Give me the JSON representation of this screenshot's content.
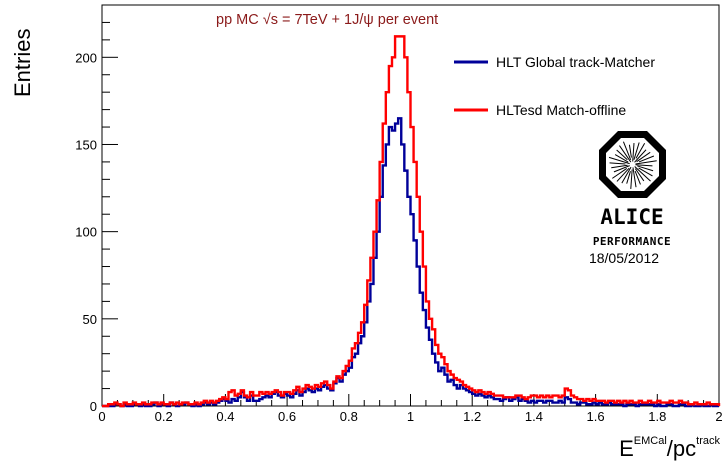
{
  "chart_data": {
    "type": "histogram",
    "title": "pp MC √s = 7TeV + 1J/ψ per event",
    "xlabel": {
      "base": "E",
      "sup1": "EMCal",
      "mid": "/pc",
      "sup2": "track"
    },
    "ylabel": "Entries",
    "xlim": [
      0,
      2
    ],
    "ylim": [
      0,
      230
    ],
    "x_ticks": [
      "0",
      "0.2",
      "0.4",
      "0.6",
      "0.8",
      "1",
      "1.2",
      "1.4",
      "1.6",
      "1.8",
      "2"
    ],
    "y_ticks": [
      "0",
      "50",
      "100",
      "150",
      "200"
    ],
    "bin_width": 0.01,
    "grid": false,
    "legend_position": "top-right",
    "series": [
      {
        "name": "HLT Global track-Matcher",
        "color": "#000099",
        "values": [
          0,
          0,
          0,
          0,
          1,
          1,
          0,
          1,
          0,
          0,
          1,
          1,
          0,
          1,
          0,
          0,
          1,
          2,
          0,
          1,
          1,
          0,
          2,
          1,
          0,
          1,
          1,
          2,
          1,
          0,
          1,
          0,
          1,
          2,
          1,
          2,
          1,
          2,
          3,
          4,
          3,
          2,
          4,
          3,
          5,
          8,
          5,
          3,
          6,
          3,
          3,
          4,
          5,
          6,
          5,
          7,
          8,
          6,
          5,
          7,
          6,
          5,
          7,
          9,
          6,
          8,
          10,
          9,
          8,
          10,
          9,
          11,
          12,
          10,
          9,
          13,
          16,
          14,
          18,
          20,
          22,
          28,
          30,
          36,
          40,
          48,
          60,
          70,
          85,
          100,
          120,
          138,
          150,
          160,
          158,
          162,
          165,
          150,
          135,
          120,
          110,
          95,
          80,
          65,
          55,
          45,
          38,
          30,
          25,
          20,
          22,
          18,
          14,
          15,
          12,
          10,
          12,
          10,
          9,
          8,
          7,
          6,
          7,
          6,
          5,
          6,
          5,
          4,
          4,
          3,
          4,
          5,
          3,
          4,
          5,
          3,
          4,
          3,
          2,
          3,
          2,
          3,
          3,
          2,
          3,
          3,
          2,
          2,
          3,
          2,
          5,
          4,
          2,
          2,
          1,
          2,
          2,
          1,
          1,
          2,
          1,
          2,
          1,
          1,
          2,
          1,
          1,
          1,
          1,
          0,
          1,
          1,
          1,
          0,
          1,
          1,
          1,
          1,
          1,
          0,
          1,
          0,
          0,
          1,
          1,
          0,
          0,
          1,
          1,
          0,
          0,
          1,
          0,
          0,
          1,
          0,
          0,
          1,
          0,
          0
        ]
      },
      {
        "name": "HLTesd Match-offline",
        "color": "#ff0000",
        "values": [
          0,
          0,
          1,
          1,
          2,
          1,
          0,
          2,
          1,
          1,
          2,
          1,
          1,
          2,
          1,
          1,
          2,
          2,
          1,
          2,
          1,
          1,
          2,
          1,
          2,
          1,
          2,
          2,
          1,
          1,
          2,
          1,
          2,
          3,
          2,
          3,
          2,
          3,
          4,
          5,
          4,
          8,
          9,
          6,
          7,
          9,
          6,
          5,
          8,
          6,
          6,
          8,
          7,
          8,
          7,
          8,
          9,
          8,
          6,
          8,
          8,
          7,
          9,
          11,
          8,
          10,
          12,
          11,
          10,
          12,
          11,
          13,
          14,
          12,
          10,
          14,
          17,
          16,
          20,
          23,
          26,
          33,
          36,
          42,
          48,
          58,
          72,
          85,
          100,
          118,
          140,
          162,
          180,
          195,
          200,
          212,
          212,
          212,
          200,
          180,
          160,
          140,
          120,
          100,
          80,
          60,
          50,
          44,
          35,
          30,
          28,
          24,
          20,
          18,
          16,
          15,
          14,
          12,
          11,
          10,
          9,
          8,
          9,
          8,
          7,
          8,
          7,
          6,
          6,
          6,
          5,
          5,
          5,
          5,
          6,
          6,
          5,
          4,
          5,
          6,
          6,
          5,
          6,
          5,
          6,
          5,
          6,
          6,
          5,
          6,
          10,
          9,
          6,
          5,
          4,
          4,
          3,
          4,
          3,
          4,
          3,
          3,
          3,
          2,
          3,
          3,
          2,
          3,
          2,
          3,
          2,
          3,
          2,
          2,
          3,
          2,
          2,
          3,
          2,
          2,
          3,
          2,
          2,
          2,
          3,
          2,
          2,
          3,
          2,
          2,
          1,
          1,
          2,
          1,
          1,
          1,
          2,
          1,
          1,
          1
        ]
      }
    ],
    "legend": [
      {
        "label": "HLT Global track-Matcher",
        "color": "#000099"
      },
      {
        "label": "HLTesd Match-offline",
        "color": "#ff0000"
      }
    ],
    "logo": {
      "word": "ALICE",
      "sub": "PERFORMANCE",
      "date": "18/05/2012"
    }
  }
}
